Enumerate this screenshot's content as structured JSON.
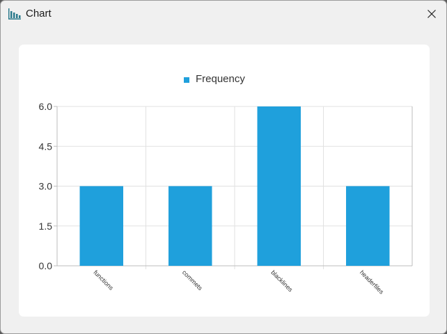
{
  "window": {
    "title": "Chart",
    "app_icon": "bar-chart-icon",
    "close_icon": "close-icon"
  },
  "colors": {
    "bar": "#1fa0dc",
    "grid": "#e1e1e1",
    "axis": "#bdbdbd",
    "card": "#ffffff",
    "window_bg": "#f0f0f0"
  },
  "chart_data": {
    "type": "bar",
    "categories": [
      "functions",
      "commets",
      "blacklines",
      "headerfiles"
    ],
    "series": [
      {
        "name": "Frequency",
        "values": [
          3,
          3,
          6,
          3
        ]
      }
    ],
    "ylim": [
      0,
      6
    ],
    "yticks": [
      "0.0",
      "1.5",
      "3.0",
      "4.5",
      "6.0"
    ],
    "xlabel": "",
    "ylabel": "",
    "grid": true,
    "legend_position": "top-center"
  }
}
